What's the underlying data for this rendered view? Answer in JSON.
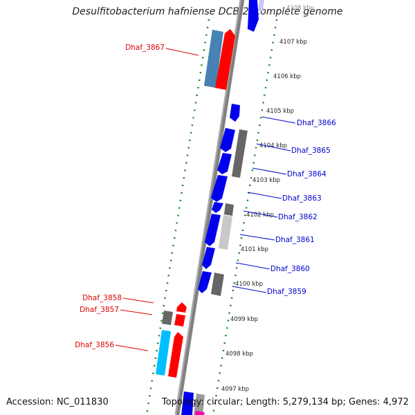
{
  "title": "Desulfitobacterium hafniense DCB-2, complete genome",
  "footer": {
    "accession": "Accession: NC_011830",
    "stats": "Topology: circular; Length: 5,279,134 bp; Genes: 4,972"
  },
  "colors": {
    "backbone": "#888888",
    "ticks": "#118811",
    "forward_gene": "#0000ee",
    "pseudo_gray": "#666666",
    "rna_red": "#ff0000",
    "highlight_blue": "#4682b4",
    "cyan": "#00bfff",
    "label_red": "#dd0000",
    "label_blue": "#0000cc"
  },
  "scale_labels": [
    "4108 kbp",
    "4107 kbp",
    "4106 kbp",
    "4105 kbp",
    "4104 kbp",
    "4103 kbp",
    "4102 kbp",
    "4101 kbp",
    "4100 kbp",
    "4099 kbp",
    "4098 kbp",
    "4097 kbp"
  ],
  "gene_labels": [
    {
      "name": "Dhaf_3867",
      "color": "red"
    },
    {
      "name": "Dhaf_3866",
      "color": "blue"
    },
    {
      "name": "Dhaf_3865",
      "color": "blue"
    },
    {
      "name": "Dhaf_3864",
      "color": "blue"
    },
    {
      "name": "Dhaf_3863",
      "color": "blue"
    },
    {
      "name": "Dhaf_3862",
      "color": "blue"
    },
    {
      "name": "Dhaf_3861",
      "color": "blue"
    },
    {
      "name": "Dhaf_3860",
      "color": "blue"
    },
    {
      "name": "Dhaf_3859",
      "color": "blue"
    },
    {
      "name": "Dhaf_3858",
      "color": "red"
    },
    {
      "name": "Dhaf_3857",
      "color": "red"
    },
    {
      "name": "Dhaf_3856",
      "color": "red"
    }
  ]
}
